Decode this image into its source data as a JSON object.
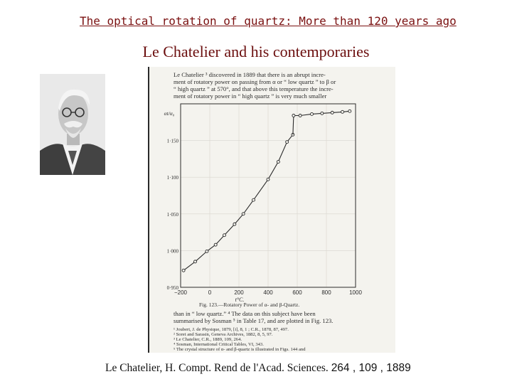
{
  "slide": {
    "title": "The optical rotation of quartz: More than 120 years ago",
    "subtitle": "Le Chatelier and his contemporaries",
    "citation_text": "Le Chatelier, H. Compt. Rend de l'Acad. Sciences. ",
    "citation_numbers": "264 , 109 , 1889"
  },
  "scan": {
    "intro_lines": [
      "Le Chatelier ³ discovered in 1889 that there is an abrupt incre-",
      "ment of rotatory power on passing from α or “ low quartz ” to β or",
      "“ high quartz ” at 570°, and that above this temperature the incre-",
      "ment of rotatory power in “ high quartz ” is very much smaller"
    ],
    "caption": "Fig. 123.—Rotatory Power of α- and β-Quartz.",
    "after_lines": [
      "than in “ low quartz.” ⁴  The data on this subject have been",
      "summarised by Sosman ⁵ in Table 17, and are plotted in Fig. 123."
    ],
    "footnotes": [
      "¹ Joubert, J. de Physique, 1879, [i], 8, 1 ; C.R., 1878, 87, 497.",
      "² Soret and Sarasin, Geneva Archives, 1882, 8, 5, 97.",
      "³ Le Chatelier, C.R., 1889, 109, 264.",
      "⁴ Sosman, International Critical Tables, VI, 343.",
      "⁵ The crystal structure of α- and β-quartz is illustrated in Figs. 144 and"
    ]
  },
  "chart_data": {
    "type": "line",
    "title": "",
    "xlabel": "t°C.",
    "ylabel": "αt/α₀",
    "xlim": [
      -200,
      1000
    ],
    "ylim": [
      0.95,
      1.2
    ],
    "x_ticks": [
      -200,
      0,
      200,
      400,
      600,
      800,
      1000
    ],
    "y_ticks": [
      0.95,
      1.0,
      1.05,
      1.1,
      1.15,
      1.2
    ],
    "y_tick_labels": [
      "0·950",
      "1·000",
      "1·050",
      "1·100",
      "1·150",
      ""
    ],
    "grid": true,
    "series": [
      {
        "x": [
          -180,
          -100,
          -20,
          40,
          100,
          170,
          230,
          300,
          400,
          470,
          530,
          570
        ],
        "y": [
          0.973,
          0.985,
          0.999,
          1.008,
          1.021,
          1.036,
          1.05,
          1.069,
          1.097,
          1.121,
          1.148,
          1.158
        ],
        "markers": true
      },
      {
        "x": [
          570,
          575
        ],
        "y": [
          1.158,
          1.184
        ],
        "markers": false
      },
      {
        "x": [
          575,
          620,
          700,
          770,
          840,
          910,
          960
        ],
        "y": [
          1.184,
          1.184,
          1.186,
          1.187,
          1.188,
          1.189,
          1.19
        ],
        "markers": true
      }
    ]
  },
  "colors": {
    "title": "#7a1010",
    "subtitle": "#6b0e0e",
    "paper": "#f4f3ee",
    "ink": "#2b2b2b"
  }
}
